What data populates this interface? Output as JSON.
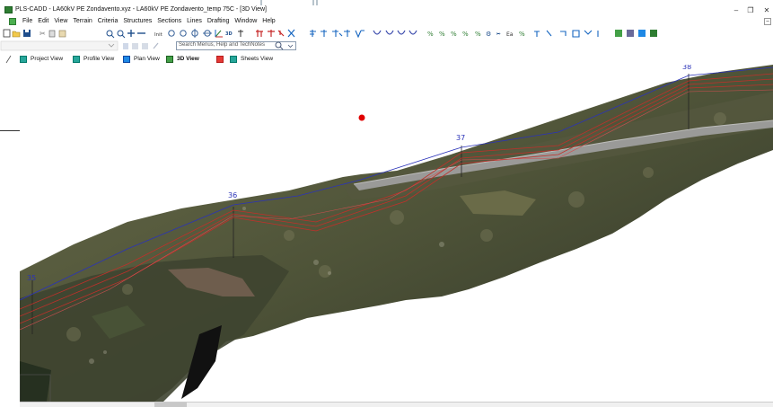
{
  "window": {
    "title": "PLS-CADD - LA60kV PE Zondavento.xyz - LA60kV PE Zondavento_temp 75C - [3D View]",
    "minimize_glyph": "–",
    "restore_glyph": "❐",
    "close_glyph": "✕"
  },
  "menu": {
    "items": [
      "File",
      "Edit",
      "View",
      "Terrain",
      "Criteria",
      "Structures",
      "Sections",
      "Lines",
      "Drafting",
      "Window",
      "Help"
    ],
    "mdi_minimize_glyph": "–"
  },
  "toolbar": {
    "init_label": "Init",
    "icons": [
      "new-file-icon",
      "open-folder-icon",
      "save-icon",
      "cut-icon",
      "copy-icon",
      "paste-icon",
      "zoom-in-icon",
      "zoom-out-icon",
      "zoom-plus-icon",
      "zoom-minus-icon",
      "rotate-left-icon",
      "rotate-right-icon",
      "pan-icon",
      "pan-vertical-icon",
      "axis-icon",
      "3d-toggle-icon",
      "structure-add-icon"
    ]
  },
  "search": {
    "placeholder": "Search Menus, Help and TechNotes"
  },
  "tabs": [
    {
      "label": "Project View",
      "active": false,
      "color": "#26a69a"
    },
    {
      "label": "Profile View",
      "active": false,
      "color": "#26a69a"
    },
    {
      "label": "Plan View",
      "active": false,
      "color": "#1e88e5"
    },
    {
      "label": "3D View",
      "active": true,
      "color": "#43a047"
    },
    {
      "label": "",
      "active": false,
      "color": "#e53935"
    },
    {
      "label": "Sheets View",
      "active": false,
      "color": "#26a69a"
    }
  ],
  "scene": {
    "structure_labels": [
      "36",
      "37",
      "38",
      "35"
    ],
    "colors": {
      "conductor": "#c0302a",
      "shield_wire": "#2b33b8",
      "marker": "#e00000",
      "terrain_dark": "#3c4230",
      "terrain_mid": "#5d5f43",
      "road": "#9a9a98"
    }
  }
}
